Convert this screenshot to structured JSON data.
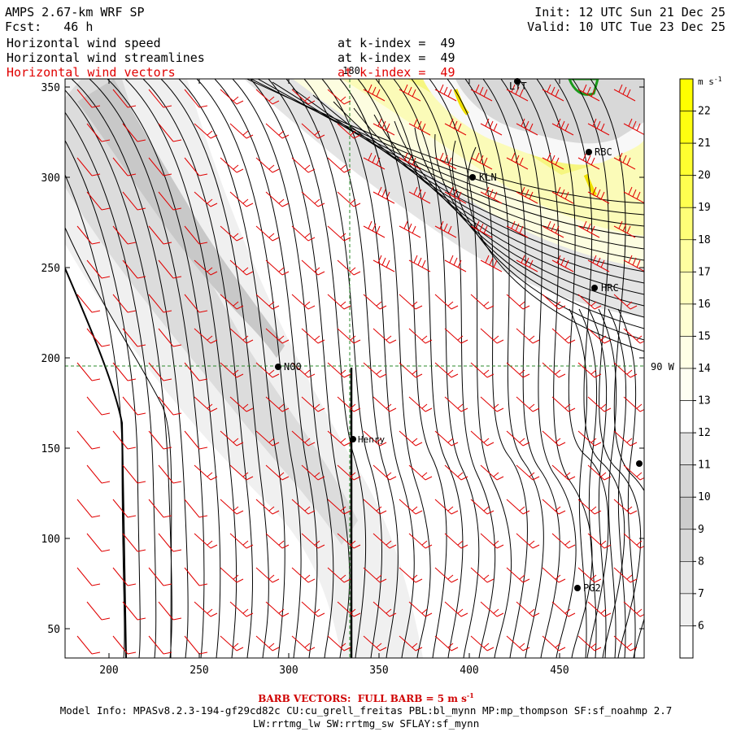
{
  "header": {
    "model_title": "AMPS 2.67-km WRF SP",
    "forecast": "Fcst:   46 h",
    "init": "Init: 12 UTC Sun 21 Dec 25",
    "valid": "Valid: 10 UTC Tue 23 Dec 25",
    "field_1": "Horizontal wind speed",
    "field_1_level": "at k-index =  49",
    "field_2": "Horizontal wind streamlines",
    "field_2_level": "at k-index =  49",
    "field_3": "Horizontal wind vectors",
    "field_3_level": "at k-index =  49"
  },
  "axes": {
    "x_ticks": [
      "200",
      "250",
      "300",
      "350",
      "400",
      "450"
    ],
    "y_ticks": [
      "350",
      "300",
      "250",
      "200",
      "150",
      "100",
      "50"
    ],
    "lon_label": "180",
    "lat_label": "90 W"
  },
  "stations": [
    {
      "label": "LYT"
    },
    {
      "label": "RBC"
    },
    {
      "label": "KLN"
    },
    {
      "label": "HRC"
    },
    {
      "label": "N00"
    },
    {
      "label": "Henry"
    },
    {
      "label": "PG2"
    },
    {
      "label": ""
    }
  ],
  "colorbar": {
    "unit": "m s",
    "unit_exp": "-1",
    "labels": [
      "22",
      "21",
      "20",
      "19",
      "18",
      "17",
      "16",
      "15",
      "14",
      "13",
      "12",
      "11",
      "10",
      "9",
      "8",
      "7",
      "6"
    ]
  },
  "colors": {
    "barb": "#e00000",
    "streamline": "#000000",
    "guide_lon": "#2a8a2a",
    "coast": "#1a9a1a"
  },
  "footer": {
    "barb_note": "BARB VECTORS:  FULL BARB = 5 m s",
    "barb_note_exp": "-1",
    "model_info": "Model Info: MPASv8.2.3-194-gf29cd82c CU:cu_grell_freitas PBL:bl_mynn MP:mp_thompson SF:sf_noahmp 2.7",
    "model_info_2": "LW:rrtmg_lw SW:rrtmg_sw SFLAY:sf_mynn"
  }
}
